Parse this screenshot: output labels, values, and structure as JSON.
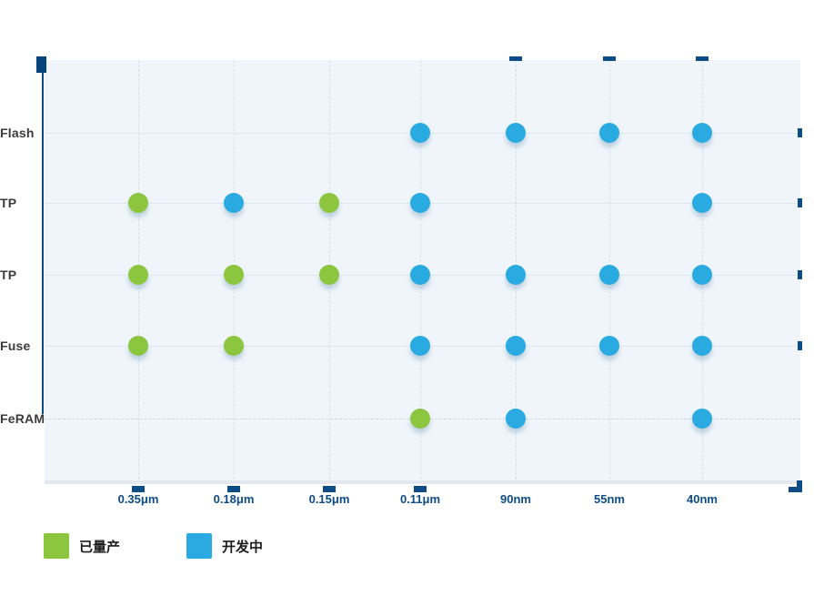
{
  "chart_data": {
    "type": "scatter",
    "title": "",
    "x_categories": [
      "0.35μm",
      "0.18μm",
      "0.15μm",
      "0.11μm",
      "90nm",
      "55nm",
      "40nm"
    ],
    "y_categories": [
      "Flash",
      "TP",
      "TP",
      "Fuse",
      "FeRAM"
    ],
    "series": [
      {
        "name": "已量产",
        "color": "#8cc63f",
        "points": [
          [
            1,
            0
          ],
          [
            1,
            2
          ],
          [
            2,
            0
          ],
          [
            2,
            1
          ],
          [
            2,
            2
          ],
          [
            3,
            0
          ],
          [
            3,
            1
          ],
          [
            4,
            3
          ]
        ]
      },
      {
        "name": "开发中",
        "color": "#29abe2",
        "points": [
          [
            0,
            3
          ],
          [
            0,
            4
          ],
          [
            0,
            5
          ],
          [
            0,
            6
          ],
          [
            1,
            1
          ],
          [
            1,
            3
          ],
          [
            1,
            6
          ],
          [
            2,
            3
          ],
          [
            2,
            4
          ],
          [
            2,
            5
          ],
          [
            2,
            6
          ],
          [
            3,
            3
          ],
          [
            3,
            4
          ],
          [
            3,
            5
          ],
          [
            3,
            6
          ],
          [
            4,
            4
          ],
          [
            4,
            6
          ]
        ]
      }
    ],
    "grid": true,
    "legend_position": "bottom-left",
    "axis_color": "#0d4c85",
    "plot_background": "#eff5fa"
  },
  "legend": {
    "items": [
      {
        "label": "已量产",
        "color": "#8cc63f"
      },
      {
        "label": "开发中",
        "color": "#29abe2"
      }
    ]
  }
}
